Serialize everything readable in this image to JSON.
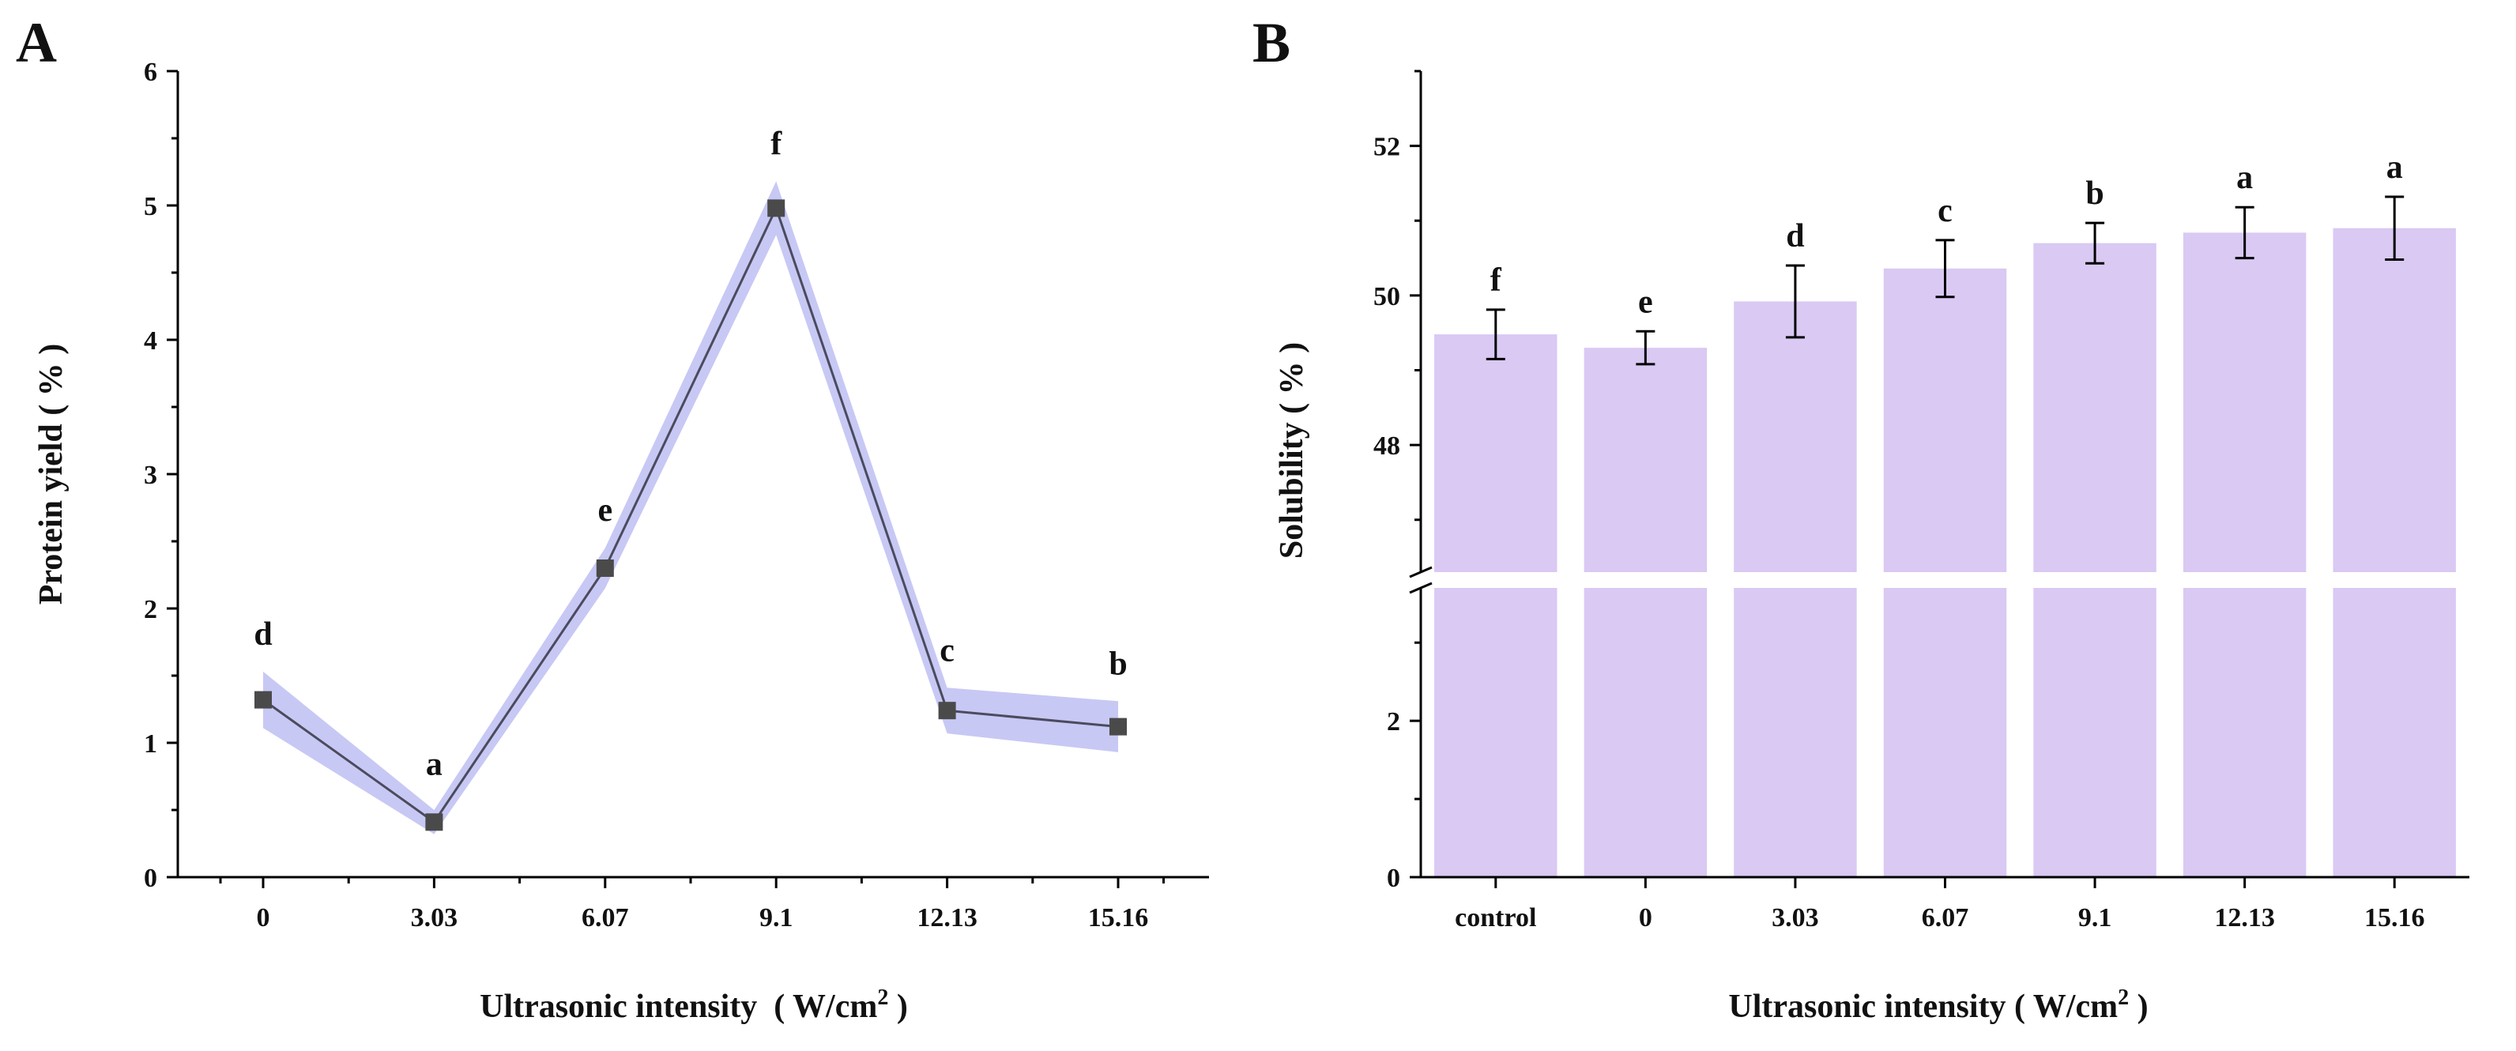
{
  "chart_data": [
    {
      "panel": "A",
      "type": "line",
      "xlabel": "Ultrasonic intensity  ( W/cm",
      "xlabel_sup": "2",
      "xlabel_end": " )",
      "ylabel": "Protein yield ( % )",
      "categories": [
        "0",
        "3.03",
        "6.07",
        "9.1",
        "12.13",
        "15.16"
      ],
      "values": [
        1.32,
        0.41,
        2.3,
        4.98,
        1.24,
        1.12
      ],
      "error": [
        0.21,
        0.09,
        0.15,
        0.2,
        0.17,
        0.19
      ],
      "letters": [
        "d",
        "a",
        "e",
        "f",
        "c",
        "b"
      ],
      "ylim": [
        0,
        6
      ],
      "yticks": [
        "0",
        "1",
        "2",
        "3",
        "4",
        "5",
        "6"
      ],
      "line_color": "#4b4b5e",
      "band_color": "#c8c8f5",
      "marker_color": "#4a4a4a"
    },
    {
      "panel": "B",
      "type": "bar",
      "xlabel": "Ultrasonic intensity ( W/cm",
      "xlabel_sup": "2",
      "xlabel_end": " )",
      "ylabel": "Solubility ( % )",
      "categories": [
        "control",
        "0",
        "3.03",
        "6.07",
        "9.1",
        "12.13",
        "15.16"
      ],
      "values": [
        49.48,
        49.3,
        49.92,
        50.36,
        50.7,
        50.84,
        50.9
      ],
      "error": [
        0.33,
        0.22,
        0.48,
        0.38,
        0.27,
        0.34,
        0.42
      ],
      "letters": [
        "f",
        "e",
        "d",
        "c",
        "b",
        "a",
        "a"
      ],
      "axis_break": true,
      "lower_range": [
        0,
        3.7
      ],
      "lower_yticks": [
        "0",
        "2"
      ],
      "upper_range": [
        46.3,
        53
      ],
      "upper_yticks": [
        "48",
        "50",
        "52"
      ],
      "bar_color": "#d9c9f3"
    }
  ]
}
